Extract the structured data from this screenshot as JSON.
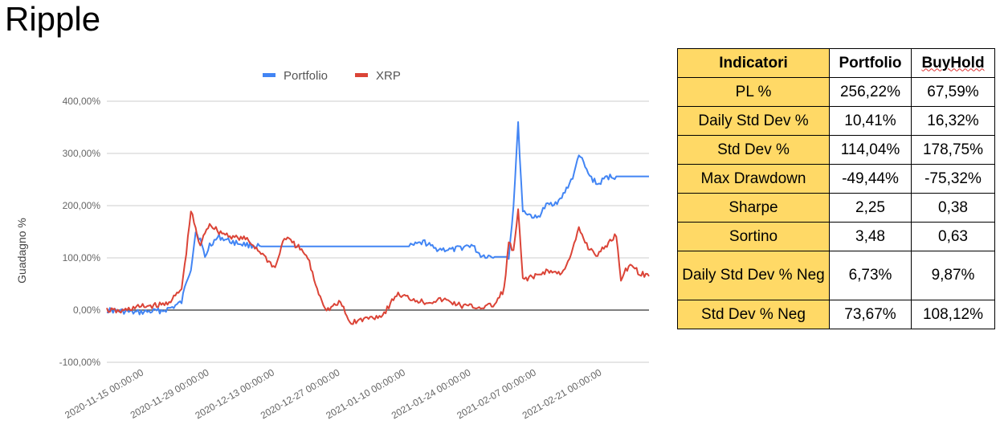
{
  "page": {
    "title": "Ripple"
  },
  "chart_data": {
    "type": "line",
    "title": "",
    "ylabel": "Guadagno %",
    "xlabel": "",
    "ylim": [
      -100,
      400
    ],
    "yticks": [
      -100,
      0,
      100,
      200,
      300,
      400
    ],
    "ytick_labels": [
      "-100,00%",
      "0,00%",
      "100,00%",
      "200,00%",
      "300,00%",
      "400,00%"
    ],
    "x_range": [
      "2020-11-07",
      "2021-03-03"
    ],
    "xtick_labels": [
      "2020-11-15 00:00:00",
      "2020-11-29 00:00:00",
      "2020-12-13 00:00:00",
      "2020-12-27 00:00:00",
      "2021-01-10 00:00:00",
      "2021-01-24 00:00:00",
      "2021-02-07 00:00:00",
      "2021-02-21 00:00:00"
    ],
    "xtick_dates": [
      "2020-11-15",
      "2020-11-29",
      "2020-12-13",
      "2020-12-27",
      "2021-01-10",
      "2021-01-24",
      "2021-02-07",
      "2021-02-21"
    ],
    "grid": true,
    "legend": "top",
    "series": [
      {
        "name": "Portfolio",
        "color": "#4285f4",
        "points": [
          [
            "2020-11-07",
            0
          ],
          [
            "2020-11-10",
            -2
          ],
          [
            "2020-11-13",
            -5
          ],
          [
            "2020-11-16",
            -3
          ],
          [
            "2020-11-19",
            -1
          ],
          [
            "2020-11-21",
            5
          ],
          [
            "2020-11-23",
            15
          ],
          [
            "2020-11-24",
            55
          ],
          [
            "2020-11-25",
            80
          ],
          [
            "2020-11-26",
            150
          ],
          [
            "2020-11-27",
            135
          ],
          [
            "2020-11-28",
            100
          ],
          [
            "2020-11-29",
            125
          ],
          [
            "2020-12-01",
            140
          ],
          [
            "2020-12-04",
            130
          ],
          [
            "2020-12-07",
            125
          ],
          [
            "2020-12-10",
            122
          ],
          [
            "2020-12-15",
            122
          ],
          [
            "2020-12-22",
            122
          ],
          [
            "2020-12-29",
            122
          ],
          [
            "2021-01-05",
            122
          ],
          [
            "2021-01-11",
            122
          ],
          [
            "2021-01-14",
            130
          ],
          [
            "2021-01-16",
            118
          ],
          [
            "2021-01-20",
            115
          ],
          [
            "2021-01-24",
            125
          ],
          [
            "2021-01-26",
            105
          ],
          [
            "2021-01-29",
            102
          ],
          [
            "2021-02-01",
            102
          ],
          [
            "2021-02-02",
            200
          ],
          [
            "2021-02-03",
            355
          ],
          [
            "2021-02-04",
            190
          ],
          [
            "2021-02-07",
            175
          ],
          [
            "2021-02-09",
            200
          ],
          [
            "2021-02-12",
            210
          ],
          [
            "2021-02-15",
            260
          ],
          [
            "2021-02-16",
            300
          ],
          [
            "2021-02-18",
            260
          ],
          [
            "2021-02-20",
            240
          ],
          [
            "2021-02-22",
            255
          ],
          [
            "2021-02-24",
            256
          ],
          [
            "2021-03-03",
            256
          ]
        ]
      },
      {
        "name": "XRP",
        "color": "#db4437",
        "points": [
          [
            "2020-11-07",
            0
          ],
          [
            "2020-11-10",
            -3
          ],
          [
            "2020-11-13",
            5
          ],
          [
            "2020-11-16",
            8
          ],
          [
            "2020-11-19",
            10
          ],
          [
            "2020-11-21",
            20
          ],
          [
            "2020-11-23",
            40
          ],
          [
            "2020-11-24",
            110
          ],
          [
            "2020-11-25",
            190
          ],
          [
            "2020-11-26",
            155
          ],
          [
            "2020-11-27",
            120
          ],
          [
            "2020-11-28",
            150
          ],
          [
            "2020-11-29",
            165
          ],
          [
            "2020-12-01",
            150
          ],
          [
            "2020-12-04",
            140
          ],
          [
            "2020-12-07",
            135
          ],
          [
            "2020-12-10",
            110
          ],
          [
            "2020-12-13",
            80
          ],
          [
            "2020-12-15",
            140
          ],
          [
            "2020-12-18",
            120
          ],
          [
            "2020-12-20",
            100
          ],
          [
            "2020-12-22",
            40
          ],
          [
            "2020-12-24",
            0
          ],
          [
            "2020-12-27",
            15
          ],
          [
            "2020-12-29",
            -25
          ],
          [
            "2021-01-02",
            -15
          ],
          [
            "2021-01-05",
            -10
          ],
          [
            "2021-01-08",
            30
          ],
          [
            "2021-01-10",
            25
          ],
          [
            "2021-01-14",
            15
          ],
          [
            "2021-01-18",
            20
          ],
          [
            "2021-01-22",
            8
          ],
          [
            "2021-01-26",
            5
          ],
          [
            "2021-01-29",
            10
          ],
          [
            "2021-01-31",
            40
          ],
          [
            "2021-02-01",
            130
          ],
          [
            "2021-02-02",
            110
          ],
          [
            "2021-02-03",
            190
          ],
          [
            "2021-02-04",
            60
          ],
          [
            "2021-02-07",
            65
          ],
          [
            "2021-02-09",
            75
          ],
          [
            "2021-02-12",
            70
          ],
          [
            "2021-02-14",
            95
          ],
          [
            "2021-02-16",
            155
          ],
          [
            "2021-02-18",
            120
          ],
          [
            "2021-02-20",
            105
          ],
          [
            "2021-02-22",
            125
          ],
          [
            "2021-02-24",
            145
          ],
          [
            "2021-02-25",
            60
          ],
          [
            "2021-02-27",
            90
          ],
          [
            "2021-03-01",
            70
          ],
          [
            "2021-03-03",
            65
          ]
        ]
      }
    ]
  },
  "table": {
    "headers": [
      "Indicatori",
      "Portfolio",
      "BuyHold"
    ],
    "rows": [
      [
        "PL %",
        "256,22%",
        "67,59%"
      ],
      [
        "Daily Std Dev %",
        "10,41%",
        "16,32%"
      ],
      [
        "Std Dev %",
        "114,04%",
        "178,75%"
      ],
      [
        "Max Drawdown",
        "-49,44%",
        "-75,32%"
      ],
      [
        "Sharpe",
        "2,25",
        "0,38"
      ],
      [
        "Sortino",
        "3,48",
        "0,63"
      ],
      [
        "Daily Std Dev % Neg",
        "6,73%",
        "9,87%"
      ],
      [
        "Std Dev % Neg",
        "73,67%",
        "108,12%"
      ]
    ]
  }
}
